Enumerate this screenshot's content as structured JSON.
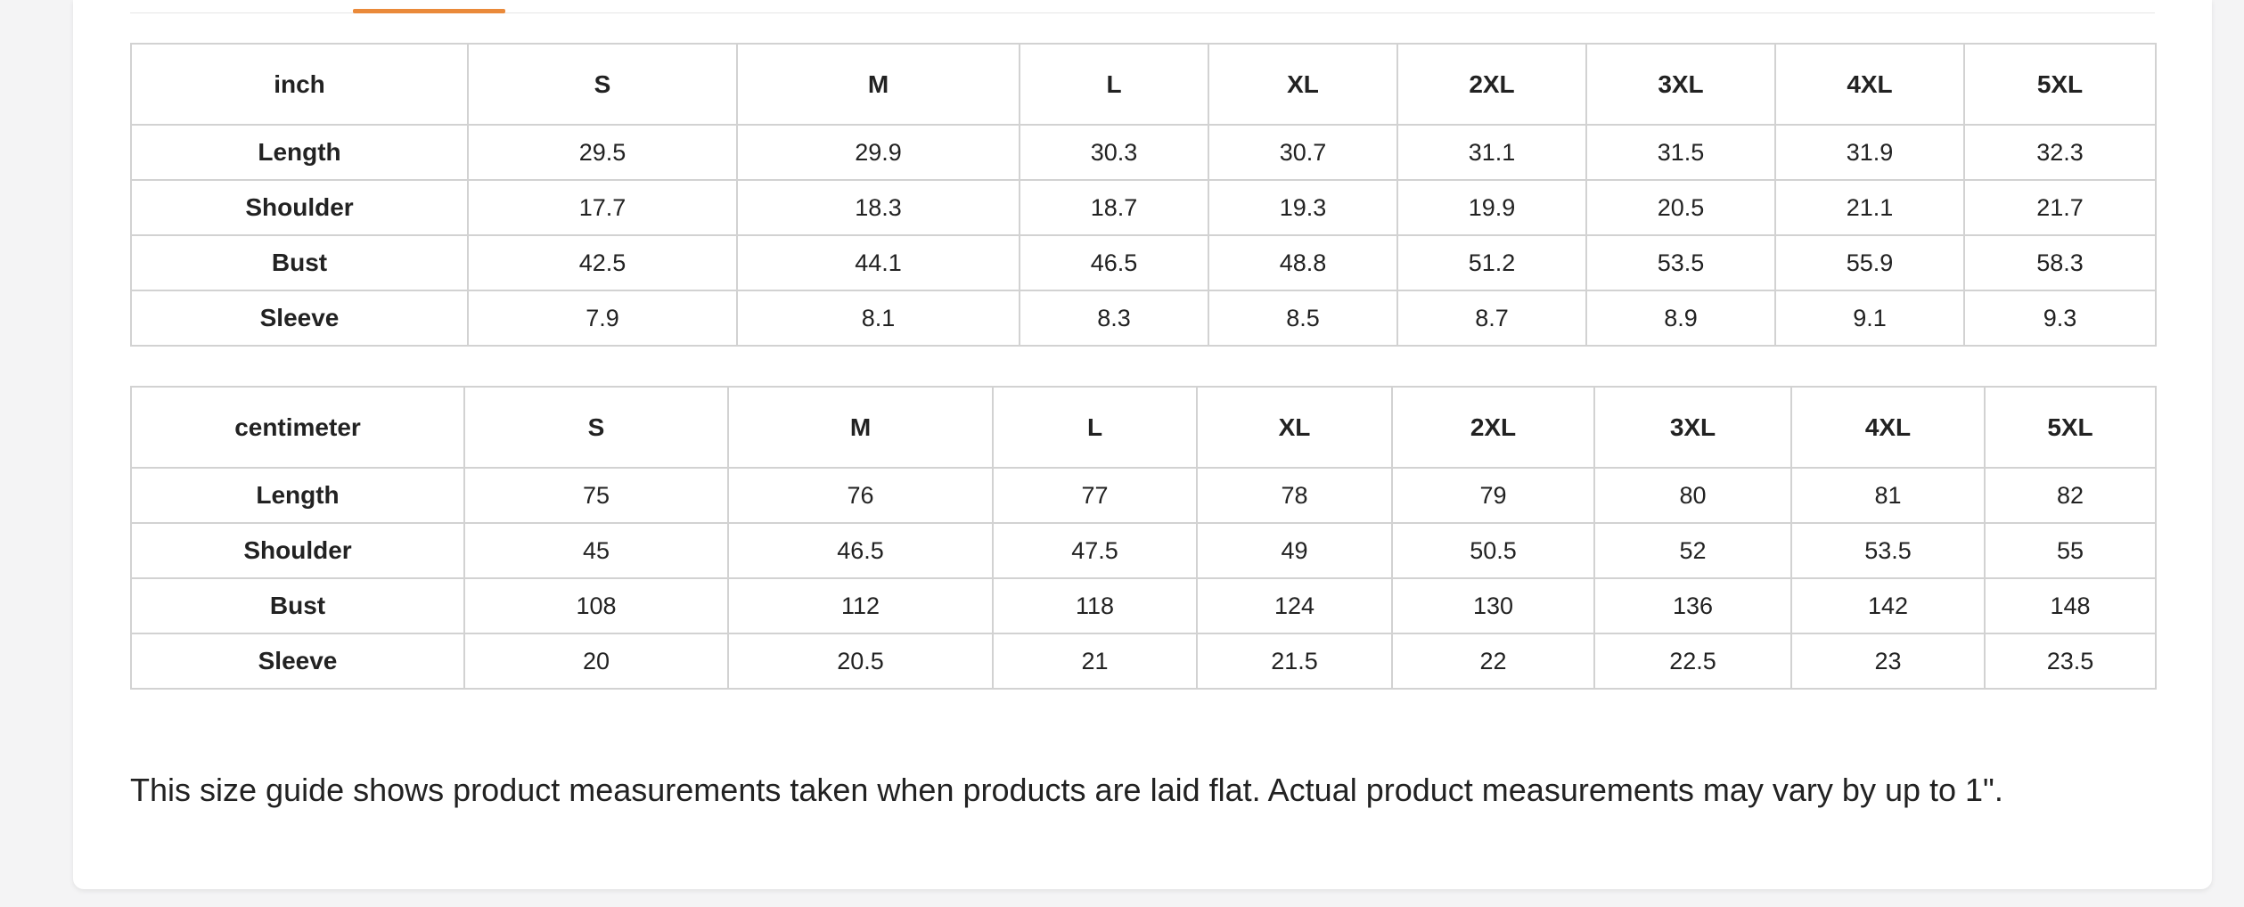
{
  "inch_table": {
    "unit": "inch",
    "sizes": [
      "S",
      "M",
      "L",
      "XL",
      "2XL",
      "3XL",
      "4XL",
      "5XL"
    ],
    "rows": [
      {
        "label": "Length",
        "values": [
          "29.5",
          "29.9",
          "30.3",
          "30.7",
          "31.1",
          "31.5",
          "31.9",
          "32.3"
        ]
      },
      {
        "label": "Shoulder",
        "values": [
          "17.7",
          "18.3",
          "18.7",
          "19.3",
          "19.9",
          "20.5",
          "21.1",
          "21.7"
        ]
      },
      {
        "label": "Bust",
        "values": [
          "42.5",
          "44.1",
          "46.5",
          "48.8",
          "51.2",
          "53.5",
          "55.9",
          "58.3"
        ]
      },
      {
        "label": "Sleeve",
        "values": [
          "7.9",
          "8.1",
          "8.3",
          "8.5",
          "8.7",
          "8.9",
          "9.1",
          "9.3"
        ]
      }
    ]
  },
  "cm_table": {
    "unit": "centimeter",
    "sizes": [
      "S",
      "M",
      "L",
      "XL",
      "2XL",
      "3XL",
      "4XL",
      "5XL"
    ],
    "rows": [
      {
        "label": "Length",
        "values": [
          "75",
          "76",
          "77",
          "78",
          "79",
          "80",
          "81",
          "82"
        ]
      },
      {
        "label": "Shoulder",
        "values": [
          "45",
          "46.5",
          "47.5",
          "49",
          "50.5",
          "52",
          "53.5",
          "55"
        ]
      },
      {
        "label": "Bust",
        "values": [
          "108",
          "112",
          "118",
          "124",
          "130",
          "136",
          "142",
          "148"
        ]
      },
      {
        "label": "Sleeve",
        "values": [
          "20",
          "20.5",
          "21",
          "21.5",
          "22",
          "22.5",
          "23",
          "23.5"
        ]
      }
    ]
  },
  "note": "This size guide shows product measurements taken when products are laid flat. Actual product measurements may vary by up to 1\".",
  "colors": {
    "active_tab_underline": "#ea8a3a",
    "table_border": "#d2d2d2",
    "page_background": "#f4f4f5",
    "card_background": "#ffffff"
  }
}
